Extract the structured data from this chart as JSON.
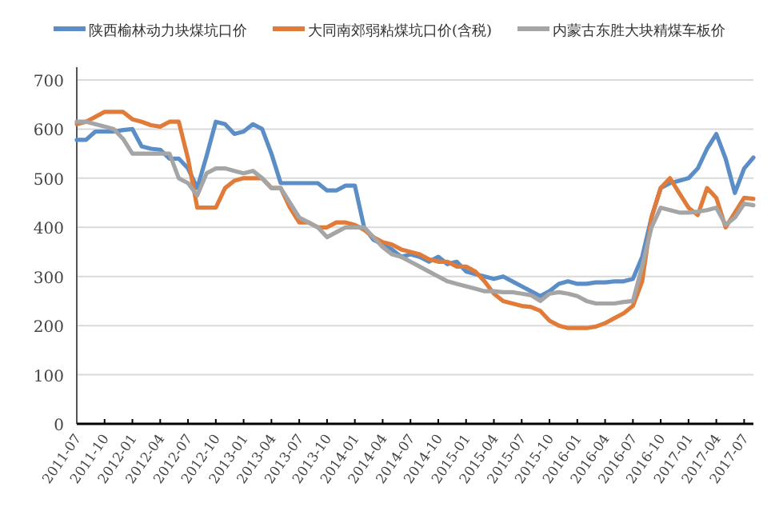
{
  "chart_data": {
    "type": "line",
    "x": [
      "2011-07",
      "2011-08",
      "2011-09",
      "2011-10",
      "2011-11",
      "2011-12",
      "2012-01",
      "2012-02",
      "2012-03",
      "2012-04",
      "2012-05",
      "2012-06",
      "2012-07",
      "2012-08",
      "2012-09",
      "2012-10",
      "2012-11",
      "2012-12",
      "2013-01",
      "2013-02",
      "2013-03",
      "2013-04",
      "2013-05",
      "2013-06",
      "2013-07",
      "2013-08",
      "2013-09",
      "2013-10",
      "2013-11",
      "2013-12",
      "2014-01",
      "2014-02",
      "2014-03",
      "2014-04",
      "2014-05",
      "2014-06",
      "2014-07",
      "2014-08",
      "2014-09",
      "2014-10",
      "2014-11",
      "2014-12",
      "2015-01",
      "2015-02",
      "2015-03",
      "2015-04",
      "2015-05",
      "2015-06",
      "2015-07",
      "2015-08",
      "2015-09",
      "2015-10",
      "2015-11",
      "2015-12",
      "2016-01",
      "2016-02",
      "2016-03",
      "2016-04",
      "2016-05",
      "2016-06",
      "2016-07",
      "2016-08",
      "2016-09",
      "2016-10",
      "2016-11",
      "2016-12",
      "2017-01",
      "2017-02",
      "2017-03",
      "2017-04",
      "2017-05",
      "2017-06",
      "2017-07",
      "2017-08"
    ],
    "series": [
      {
        "name": "陕西榆林动力块煤坑口价",
        "color": "#5b8ec6",
        "values": [
          578,
          578,
          595,
          595,
          595,
          598,
          600,
          565,
          560,
          558,
          540,
          540,
          520,
          480,
          545,
          615,
          610,
          590,
          595,
          610,
          600,
          550,
          490,
          490,
          490,
          490,
          490,
          475,
          475,
          485,
          485,
          400,
          375,
          365,
          355,
          340,
          345,
          340,
          330,
          340,
          325,
          330,
          310,
          305,
          300,
          295,
          300,
          290,
          280,
          270,
          260,
          270,
          285,
          290,
          285,
          285,
          288,
          288,
          290,
          290,
          295,
          340,
          420,
          480,
          490,
          495,
          500,
          520,
          560,
          590,
          540,
          470,
          520,
          542
        ]
      },
      {
        "name": "大同南郊弱粘煤坑口价(含税)",
        "color": "#e07b39",
        "values": [
          610,
          615,
          625,
          635,
          635,
          635,
          620,
          615,
          608,
          605,
          615,
          615,
          540,
          440,
          440,
          440,
          480,
          495,
          500,
          500,
          500,
          480,
          480,
          440,
          410,
          410,
          400,
          400,
          410,
          410,
          405,
          395,
          380,
          370,
          365,
          355,
          350,
          345,
          335,
          330,
          330,
          320,
          320,
          310,
          290,
          265,
          250,
          245,
          240,
          238,
          230,
          210,
          200,
          195,
          195,
          195,
          198,
          205,
          215,
          225,
          240,
          290,
          420,
          480,
          500,
          470,
          440,
          425,
          480,
          460,
          400,
          430,
          460,
          458
        ]
      },
      {
        "name": "内蒙古东胜大块精煤车板价",
        "color": "#a5a5a5",
        "values": [
          615,
          615,
          610,
          605,
          600,
          580,
          550,
          550,
          550,
          550,
          550,
          500,
          490,
          465,
          510,
          520,
          520,
          515,
          510,
          515,
          500,
          480,
          480,
          450,
          420,
          410,
          400,
          380,
          390,
          400,
          400,
          400,
          380,
          360,
          345,
          340,
          330,
          320,
          310,
          300,
          290,
          285,
          280,
          275,
          270,
          270,
          268,
          268,
          265,
          262,
          250,
          265,
          268,
          265,
          260,
          250,
          245,
          245,
          245,
          248,
          250,
          320,
          400,
          440,
          435,
          430,
          430,
          432,
          435,
          440,
          405,
          420,
          448,
          445
        ]
      }
    ],
    "xlim": [
      "2011-07",
      "2017-08"
    ],
    "xticks": [
      "2011-07",
      "2011-10",
      "2012-01",
      "2012-04",
      "2012-07",
      "2012-10",
      "2013-01",
      "2013-04",
      "2013-07",
      "2013-10",
      "2014-01",
      "2014-04",
      "2014-07",
      "2014-10",
      "2015-01",
      "2015-04",
      "2015-07",
      "2015-10",
      "2016-01",
      "2016-04",
      "2016-07",
      "2016-10",
      "2017-01",
      "2017-04",
      "2017-07"
    ],
    "ylim": [
      0,
      700
    ],
    "yticks": [
      0,
      100,
      200,
      300,
      400,
      500,
      600,
      700
    ],
    "grid": "y",
    "legend": "top",
    "line_style": "solid"
  }
}
